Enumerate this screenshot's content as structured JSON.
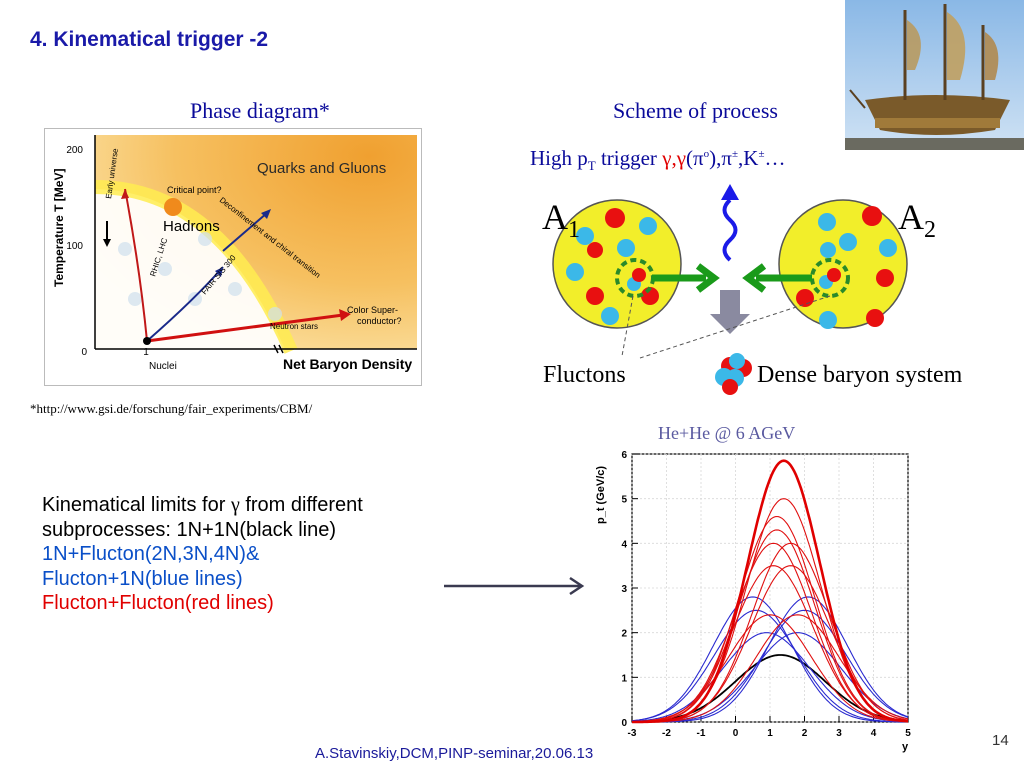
{
  "slide": {
    "title": "4. Kinematical trigger -2",
    "footer": "A.Stavinskiy,DCM,PINP-seminar,20.06.13",
    "page_number": "14"
  },
  "phase_diagram": {
    "heading": "Phase diagram*",
    "y_axis_label": "Temperature T [MeV]",
    "x_axis_label": "Net Baryon Density",
    "y_ticks": [
      "200",
      "100",
      "0"
    ],
    "x_ticks": [
      "1"
    ],
    "nuclei_label": "Nuclei",
    "regions": {
      "quarks_gluons": "Quarks and Gluons",
      "hadrons": "Hadrons",
      "critical_point": "Critical point?",
      "deconfinement": "Deconfinement and chiral transition",
      "color_super": "Color Super-",
      "color_super2": "conductor?",
      "neutron_stars": "Neutron stars",
      "early_universe": "Early universe",
      "rhic_lhc": "RHIC, LHC",
      "fair": "FAIR SIS 300"
    },
    "footnote": "*http://www.gsi.de/forschung/fair_experiments/CBM/"
  },
  "scheme": {
    "heading": "Scheme of process",
    "trigger_prefix": "High p",
    "trigger_sub": "T",
    "trigger_word": " trigger ",
    "trigger_gamma": "γ,γ",
    "trigger_pi0": "(π",
    "trigger_pi0_sup": "o",
    "trigger_rest1": "),π",
    "trigger_pm_sup": "±",
    "trigger_k": ",K",
    "trigger_k_sup": "±",
    "trigger_dots": "…",
    "a1": "A",
    "a1_sub": "1",
    "a2": "A",
    "a2_sub": "2",
    "fluctons_label": "Fluctons",
    "dense_label": "Dense baryon system"
  },
  "description": {
    "line1a": "Kinematical limits for ",
    "line1_gamma": "γ",
    "line1b": " from different",
    "line2": "subprocesses: 1N+1N(black line)",
    "line3": "1N+Flucton(2N,3N,4N)&",
    "line4": "Flucton+1N(blue lines)",
    "line5": "Flucton+Flucton(red lines)"
  },
  "chart_data": {
    "type": "line",
    "title": "He+He @ 6 AGeV",
    "xlabel": "y",
    "ylabel": "p_t (GeV/c)",
    "xlim": [
      -3,
      5
    ],
    "ylim": [
      0,
      6
    ],
    "x_ticks": [
      -3,
      -2,
      -1,
      0,
      1,
      2,
      3,
      4,
      5
    ],
    "y_ticks": [
      0,
      1,
      2,
      3,
      4,
      5,
      6
    ],
    "curve_shape": "Gaussian-like peaked curves; each series given by peak rapidity and peak p_t",
    "colors": {
      "black": "#000000",
      "blue": "#2a2ad0",
      "red": "#e01010",
      "red_bold": "#e00000"
    },
    "series": [
      {
        "group": "black",
        "peak_x": 1.3,
        "peak_y": 1.5,
        "width": 1.3
      },
      {
        "group": "blue",
        "peak_x": 0.9,
        "peak_y": 2.0,
        "width": 1.25
      },
      {
        "group": "blue",
        "peak_x": 1.8,
        "peak_y": 2.0,
        "width": 1.25
      },
      {
        "group": "blue",
        "peak_x": 0.6,
        "peak_y": 2.5,
        "width": 1.2
      },
      {
        "group": "blue",
        "peak_x": 2.0,
        "peak_y": 2.5,
        "width": 1.2
      },
      {
        "group": "blue",
        "peak_x": 0.5,
        "peak_y": 2.8,
        "width": 1.15
      },
      {
        "group": "blue",
        "peak_x": 2.1,
        "peak_y": 2.8,
        "width": 1.15
      },
      {
        "group": "red",
        "peak_x": 1.0,
        "peak_y": 2.4,
        "width": 1.2
      },
      {
        "group": "red",
        "peak_x": 1.8,
        "peak_y": 2.4,
        "width": 1.2
      },
      {
        "group": "red",
        "peak_x": 1.1,
        "peak_y": 3.5,
        "width": 1.15
      },
      {
        "group": "red",
        "peak_x": 1.6,
        "peak_y": 3.5,
        "width": 1.15
      },
      {
        "group": "red",
        "peak_x": 1.1,
        "peak_y": 4.0,
        "width": 1.12
      },
      {
        "group": "red",
        "peak_x": 1.6,
        "peak_y": 4.0,
        "width": 1.12
      },
      {
        "group": "red",
        "peak_x": 1.2,
        "peak_y": 4.3,
        "width": 1.1
      },
      {
        "group": "red",
        "peak_x": 1.2,
        "peak_y": 4.6,
        "width": 1.1
      },
      {
        "group": "red",
        "peak_x": 1.4,
        "peak_y": 5.0,
        "width": 1.08
      },
      {
        "group": "red_bold",
        "peak_x": 1.4,
        "peak_y": 5.85,
        "width": 1.05
      }
    ]
  }
}
